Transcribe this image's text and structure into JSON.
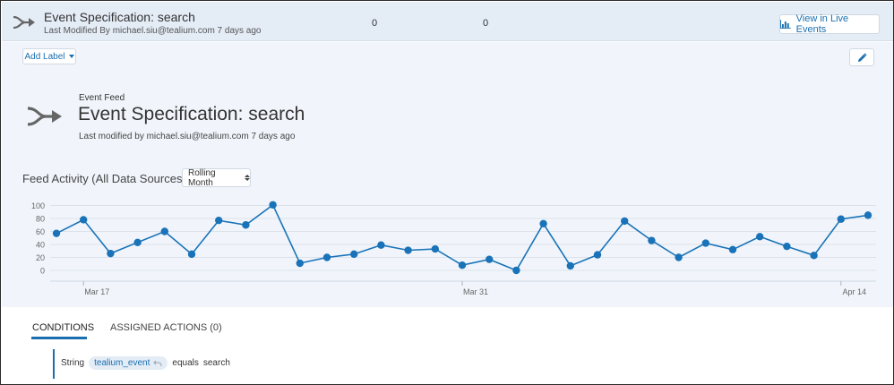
{
  "header": {
    "title": "Event Specification: search",
    "subtitle": "Last Modified By michael.siu@tealium.com 7 days ago",
    "count_a": "0",
    "count_b": "0",
    "live_button_label": "View in Live Events"
  },
  "panel": {
    "add_label": "Add Label",
    "feed_type": "Event Feed",
    "title": "Event Specification: search",
    "subtitle": "Last modified by michael.siu@tealium.com 7 days ago"
  },
  "chart_section": {
    "title": "Feed Activity (All Data Sources)",
    "range_selected": "Rolling Month"
  },
  "chart_data": {
    "type": "line",
    "title": "",
    "xlabel": "",
    "ylabel": "",
    "ylim": [
      0,
      100
    ],
    "yticks": [
      "100",
      "80",
      "60",
      "40",
      "20",
      "0"
    ],
    "xticks": [
      {
        "label": "Mar 17",
        "index": 1
      },
      {
        "label": "Mar 31",
        "index": 15
      },
      {
        "label": "Apr 14",
        "index": 29
      }
    ],
    "grid": true,
    "legend": "none",
    "color": "#1a73b8",
    "series": [
      {
        "values": [
          57,
          78,
          26,
          43,
          60,
          25,
          77,
          70,
          101,
          11,
          20,
          25,
          39,
          31,
          33,
          8,
          17,
          0,
          72,
          7,
          24,
          76,
          46,
          20,
          42,
          32,
          52,
          37,
          23,
          79,
          85
        ]
      }
    ]
  },
  "tabs": [
    {
      "label": "CONDITIONS",
      "active": true
    },
    {
      "label": "ASSIGNED ACTIONS (0)",
      "active": false
    }
  ],
  "condition": {
    "type": "String",
    "variable": "tealium_event",
    "operator": "equals",
    "value": "search"
  },
  "icons": {
    "feed": "event-feed-merge-icon",
    "live": "bar-chart-icon",
    "edit": "pencil-icon",
    "variable": "undo-arrow-icon"
  },
  "colors": {
    "accent": "#1a6fb0",
    "header_bg": "#e4ecf6",
    "panel_bg": "#f1f5fb",
    "line": "#1a73b8"
  }
}
